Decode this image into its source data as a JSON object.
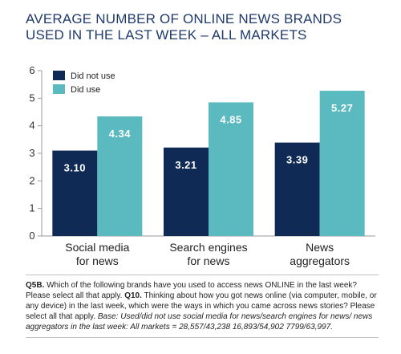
{
  "chart_data": {
    "type": "bar",
    "title": "AVERAGE NUMBER OF ONLINE NEWS BRANDS USED IN THE LAST WEEK – ALL MARKETS",
    "categories": [
      [
        "Social media",
        "for news"
      ],
      [
        "Search engines",
        "for news"
      ],
      [
        "News",
        "aggregators"
      ]
    ],
    "series": [
      {
        "name": "Did not use",
        "color": "#0f2a55",
        "values": [
          3.1,
          3.21,
          3.39
        ],
        "labels": [
          "3.10",
          "3.21",
          "3.39"
        ]
      },
      {
        "name": "Did use",
        "color": "#5bb9c0",
        "values": [
          4.34,
          4.85,
          5.27
        ],
        "labels": [
          "4.34",
          "4.85",
          "5.27"
        ]
      }
    ],
    "ylim": [
      0,
      6
    ],
    "yticks": [
      0,
      1,
      2,
      3,
      4,
      5,
      6
    ],
    "legend_position": "top-left",
    "grid": false
  },
  "footnote": {
    "q1_code": "Q5B.",
    "q1_text": " Which of the following brands have you used to access news ONLINE in the last week? Please select all that apply. ",
    "q2_code": "Q10.",
    "q2_text": " Thinking about how you got news online (via computer, mobile, or any device) in the last week, which were the ways in which you came across news stories? Please select all that apply. ",
    "base_text": "Base: Used/did not use social media for news/search engines for news/ news aggregators in the last week: All markets = 28,557/43,238 16,893/54,902 7799/63,997."
  }
}
